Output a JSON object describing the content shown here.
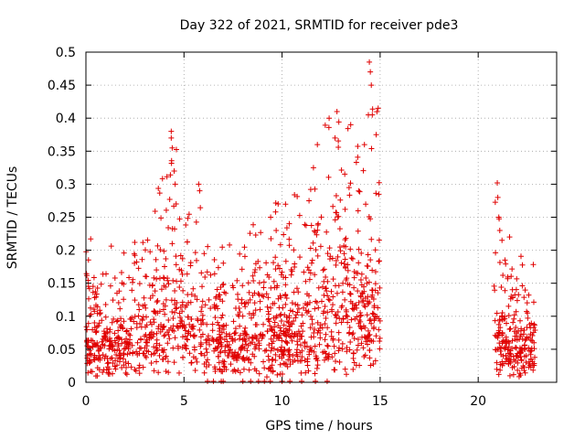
{
  "chart_data": {
    "type": "scatter",
    "title": "Day 322 of 2021, SRMTID for receiver pde3",
    "xlabel": "GPS time / hours",
    "ylabel": "SRMTID / TECUs",
    "xlim": [
      0,
      24
    ],
    "ylim": [
      0,
      0.5
    ],
    "xticks": [
      0,
      5,
      10,
      15,
      20
    ],
    "yticks": [
      0,
      0.05,
      0.1,
      0.15,
      0.2,
      0.25,
      0.3,
      0.35,
      0.4,
      0.45,
      0.5
    ],
    "grid": true,
    "marker": "+",
    "color": "#e00000",
    "segments": [
      {
        "start": 0.0,
        "end": 15.0,
        "count": 1400,
        "profile": [
          [
            0,
            0.11
          ],
          [
            1,
            0.1
          ],
          [
            2,
            0.1
          ],
          [
            3,
            0.12
          ],
          [
            4,
            0.16
          ],
          [
            4.5,
            0.2
          ],
          [
            5,
            0.16
          ],
          [
            6,
            0.13
          ],
          [
            7,
            0.1
          ],
          [
            8,
            0.1
          ],
          [
            9,
            0.13
          ],
          [
            10,
            0.13
          ],
          [
            11,
            0.15
          ],
          [
            12,
            0.2
          ],
          [
            13,
            0.2
          ],
          [
            14,
            0.21
          ],
          [
            15,
            0.2
          ]
        ]
      },
      {
        "start": 20.8,
        "end": 22.9,
        "count": 220,
        "profile": [
          [
            20.8,
            0.16
          ],
          [
            21.5,
            0.11
          ],
          [
            22.0,
            0.1
          ],
          [
            22.9,
            0.09
          ]
        ]
      }
    ],
    "highlights": [
      {
        "x": 4.35,
        "y": 0.38
      },
      {
        "x": 4.35,
        "y": 0.37
      },
      {
        "x": 4.4,
        "y": 0.355
      },
      {
        "x": 4.5,
        "y": 0.32
      },
      {
        "x": 4.55,
        "y": 0.3
      },
      {
        "x": 4.6,
        "y": 0.27
      },
      {
        "x": 5.75,
        "y": 0.3
      },
      {
        "x": 5.8,
        "y": 0.29
      },
      {
        "x": 9.8,
        "y": 0.27
      },
      {
        "x": 9.7,
        "y": 0.23
      },
      {
        "x": 11.6,
        "y": 0.325
      },
      {
        "x": 11.8,
        "y": 0.36
      },
      {
        "x": 12.4,
        "y": 0.4
      },
      {
        "x": 12.8,
        "y": 0.41
      },
      {
        "x": 12.7,
        "y": 0.37
      },
      {
        "x": 13.5,
        "y": 0.39
      },
      {
        "x": 14.2,
        "y": 0.36
      },
      {
        "x": 14.4,
        "y": 0.405
      },
      {
        "x": 14.45,
        "y": 0.485
      },
      {
        "x": 14.5,
        "y": 0.47
      },
      {
        "x": 14.55,
        "y": 0.45
      },
      {
        "x": 14.6,
        "y": 0.405
      },
      {
        "x": 14.9,
        "y": 0.415
      },
      {
        "x": 14.8,
        "y": 0.375
      },
      {
        "x": 21.0,
        "y": 0.28
      },
      {
        "x": 21.05,
        "y": 0.25
      },
      {
        "x": 21.1,
        "y": 0.23
      },
      {
        "x": 21.6,
        "y": 0.22
      }
    ],
    "zero_points": [
      6.2,
      6.5,
      6.9,
      7.0,
      8.0,
      8.4,
      8.8,
      9.1,
      9.4,
      10.0,
      10.4,
      11.0,
      11.7,
      12.3
    ]
  }
}
